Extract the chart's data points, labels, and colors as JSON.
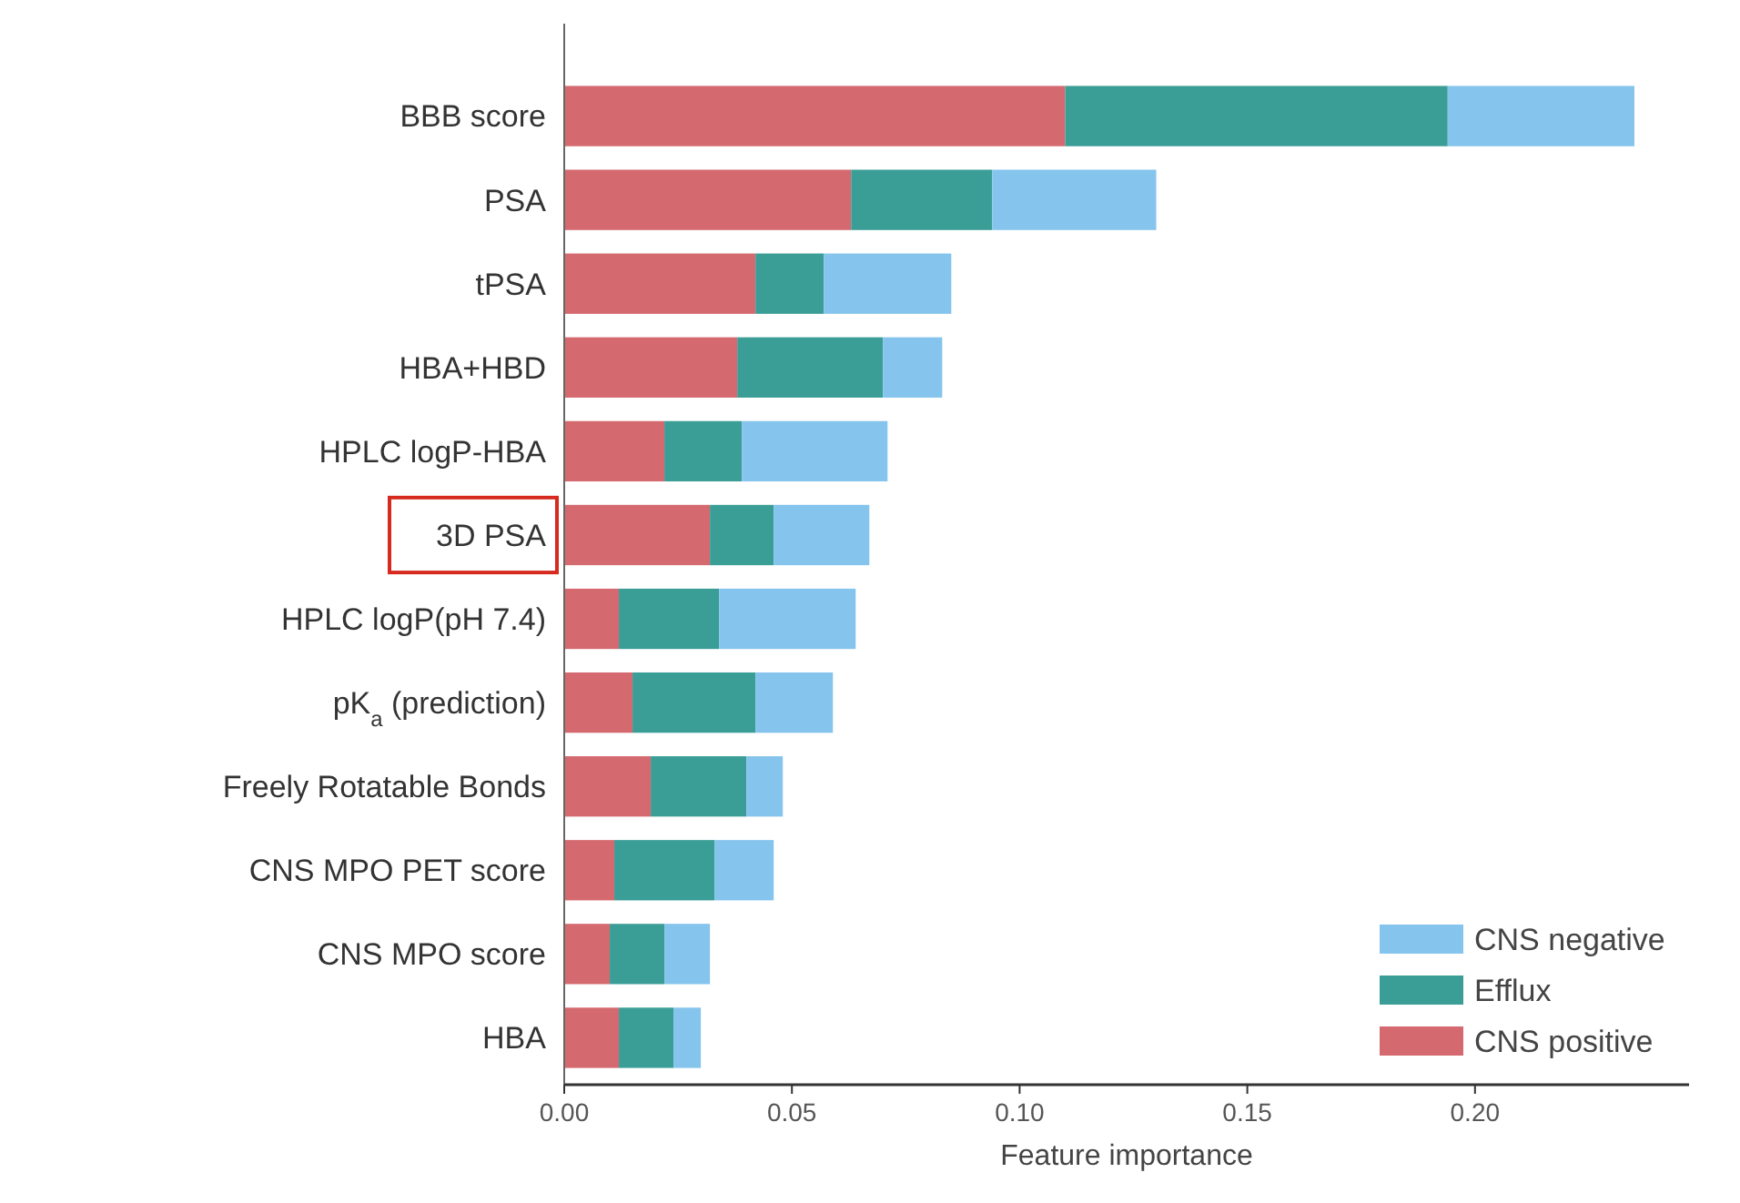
{
  "chart_data": {
    "type": "bar",
    "orientation": "horizontal",
    "stacked": true,
    "xlabel": "Feature importance",
    "categories": [
      "BBB score",
      "PSA",
      "tPSA",
      "HBA+HBD",
      "HPLC logP-HBA",
      "3D PSA",
      "HPLC logP(pH 7.4)",
      "pK$_{a}$ (prediction)",
      "Freely Rotatable Bonds",
      "CNS MPO PET score",
      "CNS MPO score",
      "HBA"
    ],
    "series": [
      {
        "name": "CNS positive",
        "color": "#d4696f",
        "values": [
          0.11,
          0.063,
          0.042,
          0.038,
          0.022,
          0.032,
          0.012,
          0.015,
          0.019,
          0.011,
          0.01,
          0.012
        ]
      },
      {
        "name": "Efflux",
        "color": "#3a9e96",
        "values": [
          0.084,
          0.031,
          0.015,
          0.032,
          0.017,
          0.014,
          0.022,
          0.027,
          0.021,
          0.022,
          0.012,
          0.012
        ]
      },
      {
        "name": "CNS negative",
        "color": "#85c4ec",
        "values": [
          0.041,
          0.036,
          0.028,
          0.013,
          0.032,
          0.021,
          0.03,
          0.017,
          0.008,
          0.013,
          0.01,
          0.006
        ]
      }
    ],
    "xlim": [
      0,
      0.247
    ],
    "xticks": [
      {
        "value": 0,
        "label": "0.00"
      },
      {
        "value": 0.05,
        "label": "0.05"
      },
      {
        "value": 0.1,
        "label": "0.10"
      },
      {
        "value": 0.15,
        "label": "0.15"
      },
      {
        "value": 0.2,
        "label": "0.20"
      }
    ],
    "legend": "bottom right"
  }
}
